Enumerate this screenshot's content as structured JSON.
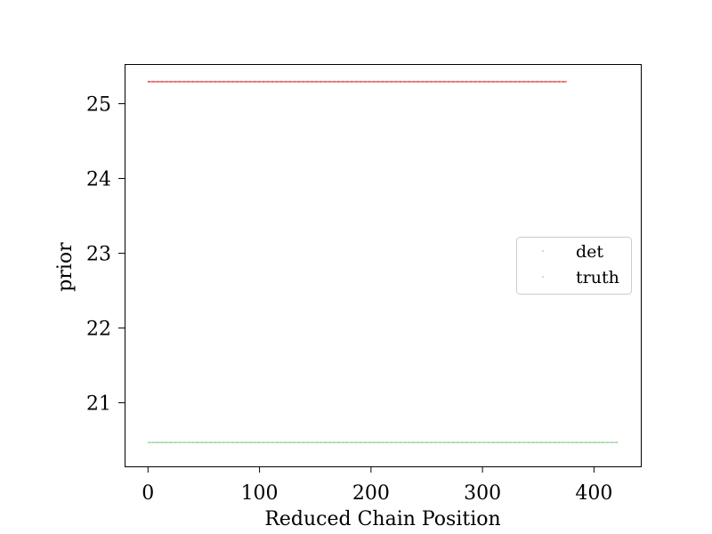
{
  "chart_data": {
    "type": "scatter",
    "xlabel": "Reduced Chain Position",
    "ylabel": "prior",
    "xlim": [
      -21,
      442
    ],
    "ylim": [
      20.15,
      25.53
    ],
    "x_ticks": [
      0,
      100,
      200,
      300,
      400
    ],
    "x_tick_labels": [
      "0",
      "100",
      "200",
      "300",
      "400"
    ],
    "y_ticks": [
      21,
      22,
      23,
      24,
      25
    ],
    "y_tick_labels": [
      "21",
      "22",
      "23",
      "24",
      "25"
    ],
    "grid": false,
    "legend_position": "center-right",
    "series": [
      {
        "name": "det",
        "color": "#d62728",
        "x_range": [
          0,
          375
        ],
        "count": 376,
        "y": 25.3
      },
      {
        "name": "truth",
        "color": "#d62728",
        "x_range": [
          0,
          375
        ],
        "count": 376,
        "y": 25.29
      },
      {
        "name": "",
        "color": "#2ca02c",
        "x_range": [
          0,
          421
        ],
        "count": 422,
        "y": 20.47
      }
    ]
  }
}
